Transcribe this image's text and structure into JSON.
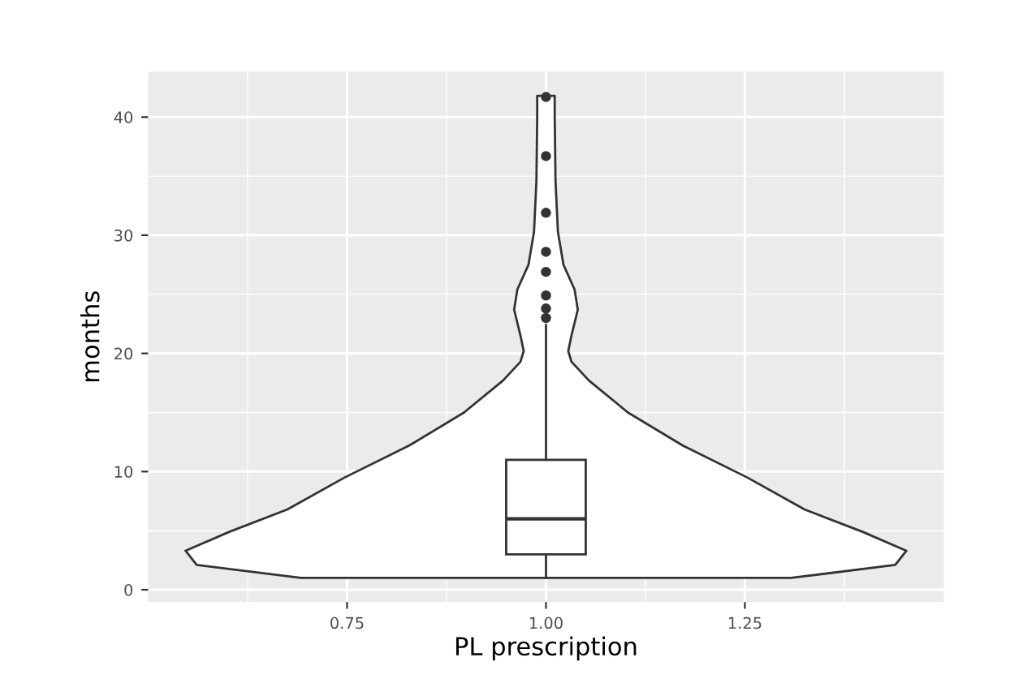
{
  "chart_data": {
    "type": "box",
    "xlabel": "PL prescription",
    "ylabel": "months",
    "xlim": [
      0.5,
      1.5
    ],
    "xticks": [
      {
        "value": 0.75,
        "label": "0.75"
      },
      {
        "value": 1.0,
        "label": "1.00"
      },
      {
        "value": 1.25,
        "label": "1.25"
      }
    ],
    "ylim": [
      -1.04,
      43.84
    ],
    "yticks": [
      0,
      10,
      20,
      30,
      40
    ],
    "grid": true,
    "series": [
      {
        "type": "area",
        "color": "#333333",
        "x": [
          0.692,
          0.561,
          0.547,
          0.602,
          0.675,
          0.747,
          0.828,
          0.897,
          0.946,
          0.968,
          0.972,
          0.968,
          0.96,
          0.964,
          0.978,
          0.985,
          0.988,
          0.989,
          0.989,
          1.011,
          1.011,
          1.012,
          1.015,
          1.022,
          1.036,
          1.04,
          1.032,
          1.028,
          1.032,
          1.054,
          1.103,
          1.172,
          1.253,
          1.325,
          1.398,
          1.453,
          1.439,
          1.308,
          0.692
        ],
        "values": [
          1.0,
          2.1,
          3.3,
          4.9,
          6.8,
          9.5,
          12.2,
          15.0,
          17.7,
          19.3,
          20.2,
          21.5,
          23.7,
          25.4,
          27.5,
          30.3,
          34.6,
          40.1,
          41.8,
          41.8,
          40.1,
          34.6,
          30.3,
          27.5,
          25.4,
          23.7,
          21.5,
          20.2,
          19.3,
          17.7,
          15.0,
          12.2,
          9.5,
          6.8,
          4.9,
          3.3,
          2.1,
          1.0,
          1.0
        ]
      },
      {
        "color": "#333333",
        "x": [
          1.0
        ],
        "boxes": [
          {
            "low": 1,
            "q1": 3,
            "median": 6,
            "q3": 11,
            "high": 22.4,
            "outliers": [
              23.0,
              23.8,
              24.9,
              26.9,
              28.6,
              31.9,
              36.7,
              41.7
            ]
          }
        ]
      }
    ]
  }
}
